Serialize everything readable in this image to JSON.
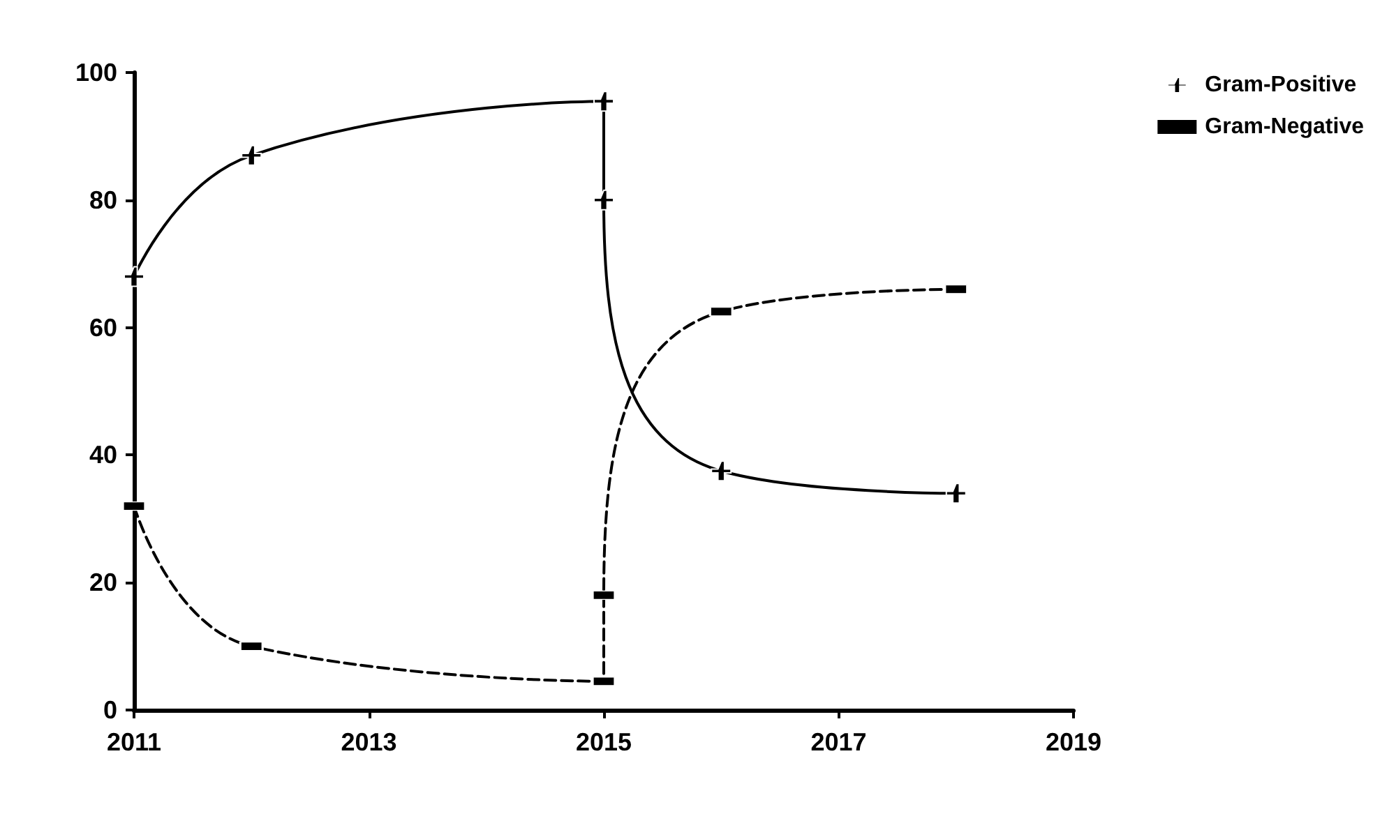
{
  "chart_data": {
    "type": "line",
    "xlim": [
      2011,
      2019
    ],
    "xticks": [
      2011,
      2013,
      2015,
      2017,
      2019
    ],
    "ylim": [
      0,
      100
    ],
    "yticks": [
      0,
      20,
      40,
      60,
      80,
      100
    ],
    "grid": false,
    "legend": "top right",
    "series": [
      {
        "name": "Gram-Positive",
        "color": "#000000",
        "marker": "cross",
        "line_style": "solid",
        "x": [
          2011,
          2012,
          2015,
          2015,
          2016,
          2018
        ],
        "values": [
          68,
          87,
          95.5,
          80,
          37.5,
          34
        ]
      },
      {
        "name": "Gram-Negative",
        "color": "#000000",
        "marker": "square",
        "line_style": "dashed",
        "x": [
          2011,
          2012,
          2015,
          2015,
          2016,
          2018
        ],
        "values": [
          32,
          10,
          4.5,
          18,
          62.5,
          66
        ]
      }
    ]
  }
}
